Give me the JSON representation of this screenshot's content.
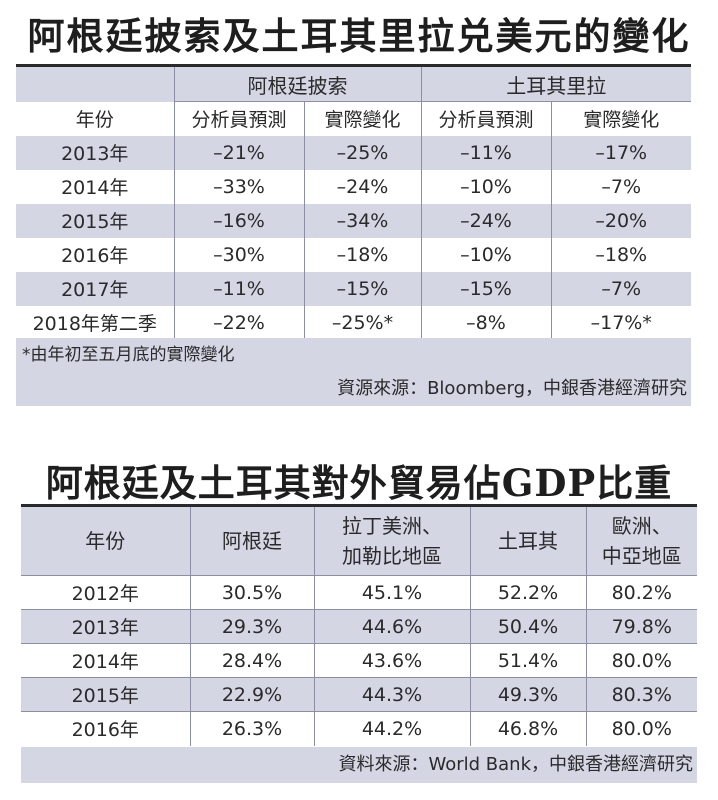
{
  "table1": {
    "title": "阿根廷披索及土耳其里拉兑美元的變化",
    "groups": [
      "阿根廷披索",
      "土耳其里拉"
    ],
    "year_header": "年份",
    "sub_headers": [
      "分析員預測",
      "實際變化",
      "分析員預測",
      "實際變化"
    ],
    "rows": [
      {
        "year": "2013年",
        "cells": [
          "–21%",
          "–25%",
          "–11%",
          "–17%"
        ]
      },
      {
        "year": "2014年",
        "cells": [
          "–33%",
          "–24%",
          "–10%",
          "–7%"
        ]
      },
      {
        "year": "2015年",
        "cells": [
          "–16%",
          "–34%",
          "–24%",
          "–20%"
        ]
      },
      {
        "year": "2016年",
        "cells": [
          "–30%",
          "–18%",
          "–10%",
          "–18%"
        ]
      },
      {
        "year": "2017年",
        "cells": [
          "–11%",
          "–15%",
          "–15%",
          "–7%"
        ]
      },
      {
        "year": "2018年第二季",
        "cells": [
          "–22%",
          "–25%*",
          "–8%",
          "–17%*"
        ]
      }
    ],
    "footnote": "*由年初至五月底的實際變化",
    "source": "資源來源：Bloomberg，中銀香港經濟研究"
  },
  "table2": {
    "title": "阿根廷及土耳其對外貿易佔GDP比重",
    "headers": [
      "年份",
      "阿根廷",
      "拉丁美洲、",
      "加勒比地區",
      "土耳其",
      "歐洲、",
      "中亞地區"
    ],
    "rows": [
      {
        "year": "2012年",
        "cells": [
          "30.5%",
          "45.1%",
          "52.2%",
          "80.2%"
        ]
      },
      {
        "year": "2013年",
        "cells": [
          "29.3%",
          "44.6%",
          "50.4%",
          "79.8%"
        ]
      },
      {
        "year": "2014年",
        "cells": [
          "28.4%",
          "43.6%",
          "51.4%",
          "80.0%"
        ]
      },
      {
        "year": "2015年",
        "cells": [
          "22.9%",
          "44.3%",
          "49.3%",
          "80.3%"
        ]
      },
      {
        "year": "2016年",
        "cells": [
          "26.3%",
          "44.2%",
          "46.8%",
          "80.0%"
        ]
      }
    ],
    "source": "資料來源：World Bank，中銀香港經濟研究"
  }
}
